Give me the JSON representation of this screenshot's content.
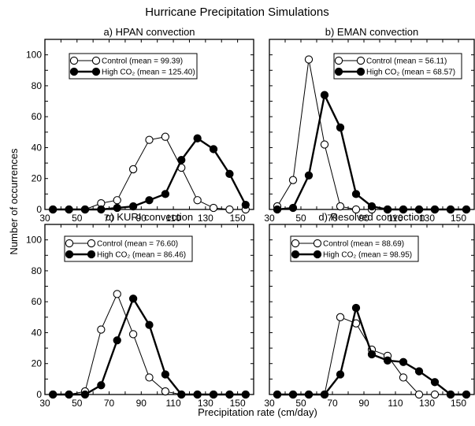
{
  "chart_data": {
    "type": "line",
    "title": "Hurricane Precipitation Simulations",
    "xlabel": "Precipitation rate (cm/day)",
    "ylabel": "Number of occurrences",
    "xlim": [
      30,
      160
    ],
    "ylim": [
      0,
      110
    ],
    "x_ticks": [
      30,
      50,
      70,
      90,
      110,
      130,
      150
    ],
    "y_ticks": [
      0,
      20,
      40,
      60,
      80,
      100
    ],
    "x": [
      35,
      45,
      55,
      65,
      75,
      85,
      95,
      105,
      115,
      125,
      135,
      145,
      155
    ],
    "panels": [
      {
        "title": "a) HPAN convection",
        "series": [
          {
            "name": "Control (mean = 99.39)",
            "marker": "open",
            "values": [
              0,
              0,
              0,
              4,
              6,
              26,
              45,
              47,
              27,
              6,
              1,
              0,
              0
            ]
          },
          {
            "name": "High CO₂ (mean = 125.40)",
            "marker": "filled",
            "values": [
              0,
              0,
              0,
              0,
              1,
              2,
              6,
              10,
              32,
              46,
              39,
              23,
              3
            ]
          }
        ]
      },
      {
        "title": "b) EMAN convection",
        "series": [
          {
            "name": "Control (mean = 56.11)",
            "marker": "open",
            "values": [
              2,
              19,
              97,
              42,
              2,
              0,
              0,
              0,
              0,
              0,
              0,
              0,
              0
            ]
          },
          {
            "name": "High CO₂ (mean = 68.57)",
            "marker": "filled",
            "values": [
              0,
              1,
              22,
              74,
              53,
              10,
              2,
              0,
              0,
              0,
              0,
              0,
              0
            ]
          }
        ]
      },
      {
        "title": "c) KURI convection",
        "series": [
          {
            "name": "Control (mean = 76.60)",
            "marker": "open",
            "values": [
              0,
              0,
              2,
              42,
              65,
              39,
              11,
              2,
              0,
              0,
              0,
              0,
              0
            ]
          },
          {
            "name": "High CO₂ (mean = 86.46)",
            "marker": "filled",
            "values": [
              0,
              0,
              0,
              6,
              35,
              62,
              45,
              13,
              0,
              0,
              0,
              0,
              0
            ]
          }
        ]
      },
      {
        "title": "d) Resolved convection",
        "series": [
          {
            "name": "Control (mean = 88.69)",
            "marker": "open",
            "values": [
              0,
              0,
              0,
              0,
              50,
              46,
              29,
              25,
              11,
              0,
              0,
              0,
              0
            ]
          },
          {
            "name": "High CO₂ (mean = 98.95)",
            "marker": "filled",
            "values": [
              0,
              0,
              0,
              0,
              13,
              56,
              26,
              22,
              21,
              15,
              8,
              0,
              0
            ]
          }
        ]
      }
    ]
  }
}
